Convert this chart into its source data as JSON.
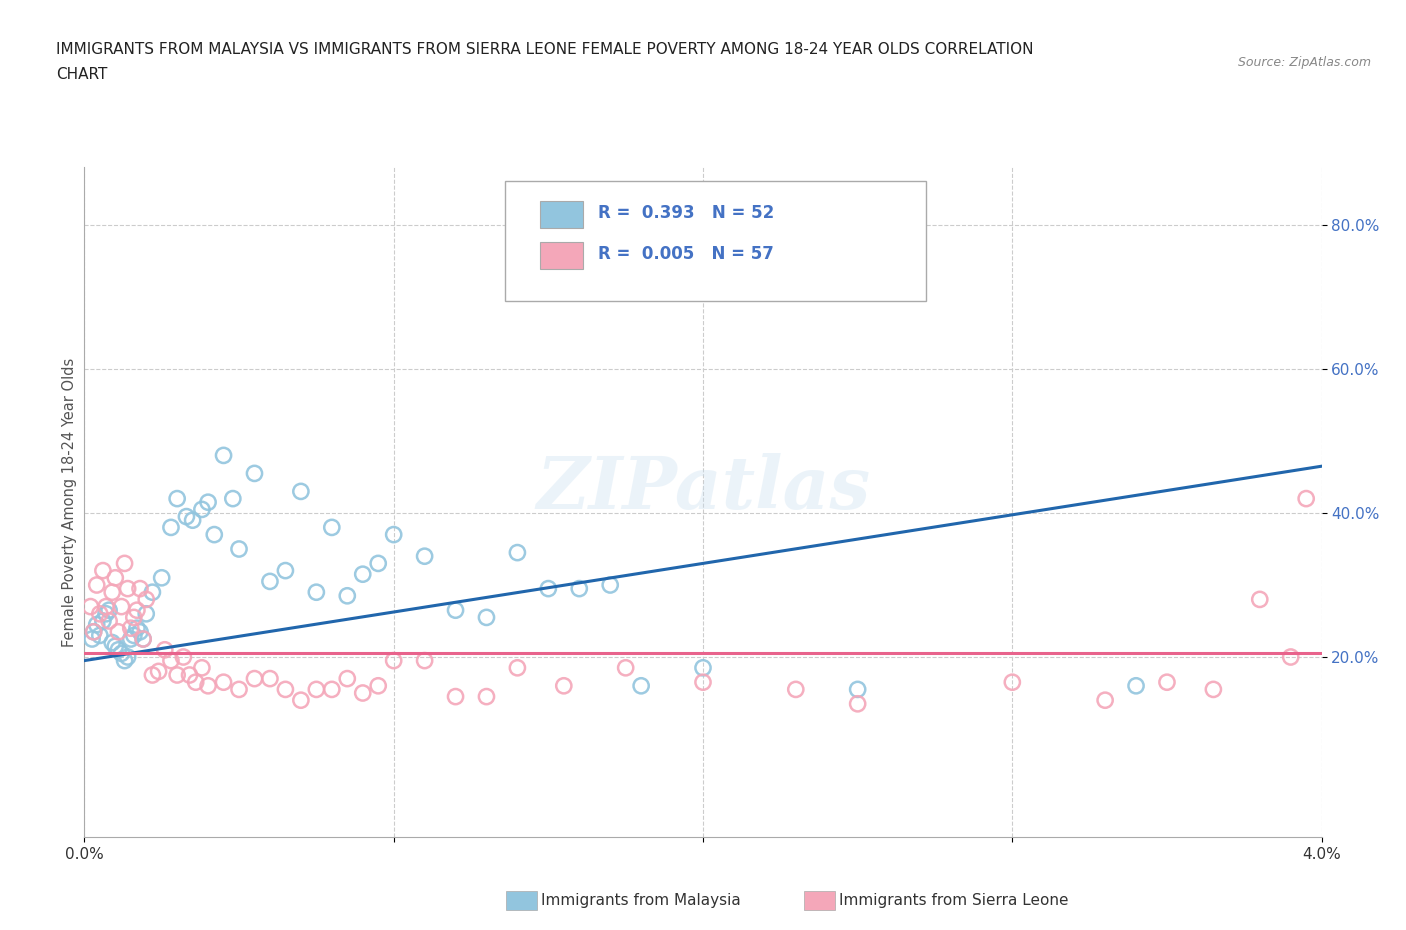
{
  "title_line1": "IMMIGRANTS FROM MALAYSIA VS IMMIGRANTS FROM SIERRA LEONE FEMALE POVERTY AMONG 18-24 YEAR OLDS CORRELATION",
  "title_line2": "CHART",
  "source_text": "Source: ZipAtlas.com",
  "ylabel": "Female Poverty Among 18-24 Year Olds",
  "xlim": [
    0.0,
    0.04
  ],
  "ylim": [
    -0.05,
    0.88
  ],
  "ytick_positions": [
    0.2,
    0.4,
    0.6,
    0.8
  ],
  "ytick_labels": [
    "20.0%",
    "40.0%",
    "60.0%",
    "80.0%"
  ],
  "xtick_positions": [
    0.0,
    0.01,
    0.02,
    0.03,
    0.04
  ],
  "xticklabels": [
    "0.0%",
    "",
    "",
    "",
    "4.0%"
  ],
  "malaysia_R": "0.393",
  "malaysia_N": "52",
  "sierraleone_R": "0.005",
  "sierraleone_N": "57",
  "malaysia_color": "#92c5de",
  "sierraleone_color": "#f4a7b9",
  "malaysia_line_color": "#2166ac",
  "sierraleone_line_color": "#e8638c",
  "ytick_color": "#4472c4",
  "watermark": "ZIPatlas",
  "malaysia_x": [
    0.00025,
    0.0003,
    0.0004,
    0.0005,
    0.0006,
    0.0007,
    0.0008,
    0.0009,
    0.001,
    0.0011,
    0.0012,
    0.0013,
    0.0014,
    0.0015,
    0.0016,
    0.0017,
    0.0018,
    0.0019,
    0.002,
    0.0022,
    0.0025,
    0.0028,
    0.003,
    0.0033,
    0.0035,
    0.0038,
    0.004,
    0.0042,
    0.0045,
    0.0048,
    0.005,
    0.0055,
    0.006,
    0.0065,
    0.007,
    0.0075,
    0.008,
    0.0085,
    0.009,
    0.0095,
    0.01,
    0.011,
    0.012,
    0.013,
    0.014,
    0.015,
    0.016,
    0.017,
    0.018,
    0.02,
    0.025,
    0.034
  ],
  "malaysia_y": [
    0.225,
    0.235,
    0.245,
    0.23,
    0.25,
    0.26,
    0.265,
    0.22,
    0.215,
    0.21,
    0.205,
    0.195,
    0.2,
    0.225,
    0.23,
    0.24,
    0.235,
    0.225,
    0.26,
    0.29,
    0.31,
    0.38,
    0.42,
    0.395,
    0.39,
    0.405,
    0.415,
    0.37,
    0.48,
    0.42,
    0.35,
    0.455,
    0.305,
    0.32,
    0.43,
    0.29,
    0.38,
    0.285,
    0.315,
    0.33,
    0.37,
    0.34,
    0.265,
    0.255,
    0.345,
    0.295,
    0.295,
    0.3,
    0.16,
    0.185,
    0.155,
    0.16
  ],
  "sierraleone_x": [
    0.0002,
    0.0003,
    0.0004,
    0.0005,
    0.0006,
    0.0007,
    0.0008,
    0.0009,
    0.001,
    0.0011,
    0.0012,
    0.0013,
    0.0014,
    0.0015,
    0.0016,
    0.0017,
    0.0018,
    0.0019,
    0.002,
    0.0022,
    0.0024,
    0.0026,
    0.0028,
    0.003,
    0.0032,
    0.0034,
    0.0036,
    0.0038,
    0.004,
    0.0045,
    0.005,
    0.0055,
    0.006,
    0.0065,
    0.007,
    0.0075,
    0.008,
    0.0085,
    0.009,
    0.0095,
    0.01,
    0.011,
    0.012,
    0.013,
    0.014,
    0.0155,
    0.0175,
    0.02,
    0.023,
    0.025,
    0.03,
    0.033,
    0.035,
    0.0365,
    0.038,
    0.039,
    0.0395
  ],
  "sierraleone_y": [
    0.27,
    0.235,
    0.3,
    0.26,
    0.32,
    0.27,
    0.25,
    0.29,
    0.31,
    0.235,
    0.27,
    0.33,
    0.295,
    0.24,
    0.255,
    0.265,
    0.295,
    0.225,
    0.28,
    0.175,
    0.18,
    0.21,
    0.195,
    0.175,
    0.2,
    0.175,
    0.165,
    0.185,
    0.16,
    0.165,
    0.155,
    0.17,
    0.17,
    0.155,
    0.14,
    0.155,
    0.155,
    0.17,
    0.15,
    0.16,
    0.195,
    0.195,
    0.145,
    0.145,
    0.185,
    0.16,
    0.185,
    0.165,
    0.155,
    0.135,
    0.165,
    0.14,
    0.165,
    0.155,
    0.28,
    0.2,
    0.42
  ],
  "malaysia_line_x": [
    0.0,
    0.04
  ],
  "malaysia_line_y": [
    0.195,
    0.465
  ],
  "sierraleone_line_x": [
    0.0,
    0.04
  ],
  "sierraleone_line_y": [
    0.205,
    0.205
  ],
  "legend_r1": "R =  0.393",
  "legend_n1": "N = 52",
  "legend_r2": "R =  0.005",
  "legend_n2": "N = 57"
}
